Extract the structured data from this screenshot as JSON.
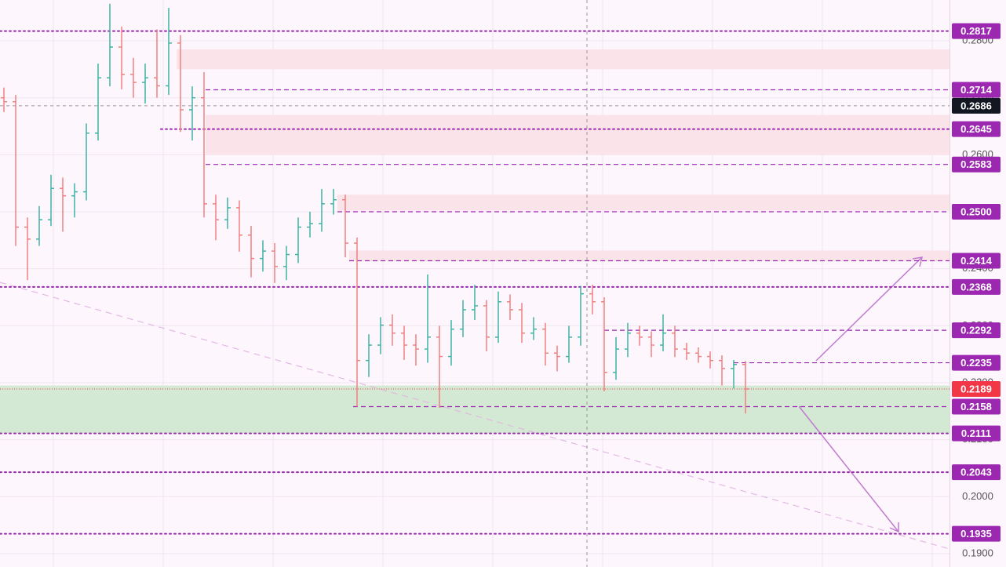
{
  "chart_data": {
    "type": "ohlc",
    "ylim": [
      0.18766,
      0.28716
    ],
    "yticks": [
      {
        "value": 0.19,
        "label": "0.1900"
      },
      {
        "value": 0.2,
        "label": "0.2000"
      },
      {
        "value": 0.21,
        "label": "0.2100"
      },
      {
        "value": 0.22,
        "label": "0.2200"
      },
      {
        "value": 0.23,
        "label": "0.2300"
      },
      {
        "value": 0.24,
        "label": "0.2400"
      },
      {
        "value": 0.25,
        "label": "0.2500"
      },
      {
        "value": 0.26,
        "label": "0.2600"
      },
      {
        "value": 0.27,
        "label": "0.2700"
      },
      {
        "value": 0.28,
        "label": "0.2800"
      }
    ],
    "grid": true,
    "up_color": "#3fb4a3",
    "down_color": "#f08080",
    "open": [
      0.27,
      0.2693,
      0.2473,
      0.2452,
      0.2486,
      0.2541,
      0.2528,
      0.2535,
      0.2638,
      0.2735,
      0.2789,
      0.2741,
      0.2727,
      0.2735,
      0.2721,
      0.2796,
      0.2679,
      0.27,
      0.2514,
      0.2486,
      0.2507,
      0.2459,
      0.2418,
      0.2431,
      0.2404,
      0.2425,
      0.2473,
      0.2479,
      0.2514,
      0.2521,
      0.2445,
      0.2239,
      0.2266,
      0.2301,
      0.2287,
      0.2266,
      0.2259,
      0.228,
      0.2246,
      0.2294,
      0.2328,
      0.2335,
      0.228,
      0.2342,
      0.2328,
      0.2287,
      0.2294,
      0.2252,
      0.2246,
      0.228,
      0.2356,
      0.2342,
      0.2218,
      0.2259,
      0.2287,
      0.228,
      0.2266,
      0.2287,
      0.2259,
      0.2252,
      0.2246,
      0.2239,
      0.2225,
      0.2232
    ],
    "high": [
      0.2718,
      0.2705,
      0.249,
      0.251,
      0.2565,
      0.256,
      0.255,
      0.2655,
      0.276,
      0.2865,
      0.2825,
      0.277,
      0.276,
      0.282,
      0.2858,
      0.281,
      0.272,
      0.2745,
      0.253,
      0.2525,
      0.252,
      0.2475,
      0.245,
      0.2445,
      0.244,
      0.249,
      0.25,
      0.254,
      0.254,
      0.253,
      0.2455,
      0.2285,
      0.2315,
      0.232,
      0.23,
      0.2285,
      0.239,
      0.23,
      0.231,
      0.2345,
      0.2372,
      0.2345,
      0.236,
      0.2355,
      0.234,
      0.2315,
      0.2305,
      0.2265,
      0.23,
      0.237,
      0.2372,
      0.235,
      0.228,
      0.2305,
      0.23,
      0.229,
      0.232,
      0.23,
      0.227,
      0.2262,
      0.2255,
      0.2248,
      0.224,
      0.2238
    ],
    "low": [
      0.2675,
      0.244,
      0.238,
      0.244,
      0.2475,
      0.2465,
      0.249,
      0.252,
      0.2625,
      0.272,
      0.2715,
      0.27,
      0.269,
      0.27,
      0.2705,
      0.264,
      0.2625,
      0.249,
      0.245,
      0.247,
      0.243,
      0.2385,
      0.2395,
      0.2375,
      0.238,
      0.241,
      0.2455,
      0.2465,
      0.2495,
      0.242,
      0.2158,
      0.221,
      0.225,
      0.2265,
      0.224,
      0.223,
      0.2235,
      0.2156,
      0.223,
      0.228,
      0.231,
      0.2255,
      0.227,
      0.231,
      0.227,
      0.2275,
      0.223,
      0.222,
      0.2235,
      0.2265,
      0.232,
      0.2185,
      0.2205,
      0.2245,
      0.2265,
      0.2245,
      0.2255,
      0.2245,
      0.224,
      0.2235,
      0.2225,
      0.2195,
      0.219,
      0.2146
    ],
    "close": [
      0.2693,
      0.2473,
      0.2452,
      0.2486,
      0.2541,
      0.2528,
      0.2535,
      0.2638,
      0.2735,
      0.2789,
      0.2741,
      0.2727,
      0.2735,
      0.2721,
      0.2796,
      0.2679,
      0.27,
      0.2514,
      0.2486,
      0.2507,
      0.2459,
      0.2418,
      0.2431,
      0.2404,
      0.2425,
      0.2473,
      0.2479,
      0.2514,
      0.2521,
      0.2445,
      0.2239,
      0.2266,
      0.2301,
      0.2287,
      0.2266,
      0.2259,
      0.228,
      0.2246,
      0.2294,
      0.2328,
      0.2335,
      0.228,
      0.2342,
      0.2328,
      0.2287,
      0.2294,
      0.2252,
      0.2246,
      0.228,
      0.2356,
      0.2342,
      0.2218,
      0.2259,
      0.2287,
      0.228,
      0.2266,
      0.2287,
      0.2259,
      0.2252,
      0.2246,
      0.2239,
      0.2225,
      0.2232,
      0.2189
    ],
    "zones": [
      {
        "low": 0.275,
        "high": 0.2785,
        "color": "#fbe3ea"
      },
      {
        "low": 0.26,
        "high": 0.267,
        "color": "#fbe3ea"
      },
      {
        "low": 0.2502,
        "high": 0.253,
        "color": "#fbe3ea"
      },
      {
        "low": 0.2414,
        "high": 0.2432,
        "color": "#fbe3ea"
      },
      {
        "low": 0.2111,
        "high": 0.2195,
        "color": "#d3e9d3"
      }
    ],
    "levels": [
      {
        "value": 0.2817,
        "label": "0.2817",
        "style": "dotted",
        "color": "#9c27b0"
      },
      {
        "value": 0.2714,
        "label": "0.2714",
        "style": "dashed",
        "color": "#9c27b0"
      },
      {
        "value": 0.2686,
        "label": "0.2686",
        "style": "crosshair",
        "color": "#131722"
      },
      {
        "value": 0.2645,
        "label": "0.2645",
        "style": "dotted",
        "color": "#9c27b0"
      },
      {
        "value": 0.2583,
        "label": "0.2583",
        "style": "dashed",
        "color": "#9c27b0"
      },
      {
        "value": 0.25,
        "label": "0.2500",
        "style": "dashed",
        "color": "#9c27b0"
      },
      {
        "value": 0.2414,
        "label": "0.2414",
        "style": "dashed",
        "color": "#9c27b0"
      },
      {
        "value": 0.2368,
        "label": "0.2368",
        "style": "dotted",
        "color": "#9c27b0"
      },
      {
        "value": 0.2292,
        "label": "0.2292",
        "style": "dashed",
        "color": "#9c27b0"
      },
      {
        "value": 0.2235,
        "label": "0.2235",
        "style": "dashed",
        "color": "#9c27b0"
      },
      {
        "value": 0.2189,
        "label": "0.2189",
        "style": "price",
        "color": "#f23645"
      },
      {
        "value": 0.2158,
        "label": "0.2158",
        "style": "dashed",
        "color": "#9c27b0"
      },
      {
        "value": 0.2111,
        "label": "0.2111",
        "style": "dotted",
        "color": "#9c27b0"
      },
      {
        "value": 0.2043,
        "label": "0.2043",
        "style": "dotted",
        "color": "#9c27b0"
      },
      {
        "value": 0.1935,
        "label": "0.1935",
        "style": "dotted",
        "color": "#9c27b0"
      }
    ]
  }
}
